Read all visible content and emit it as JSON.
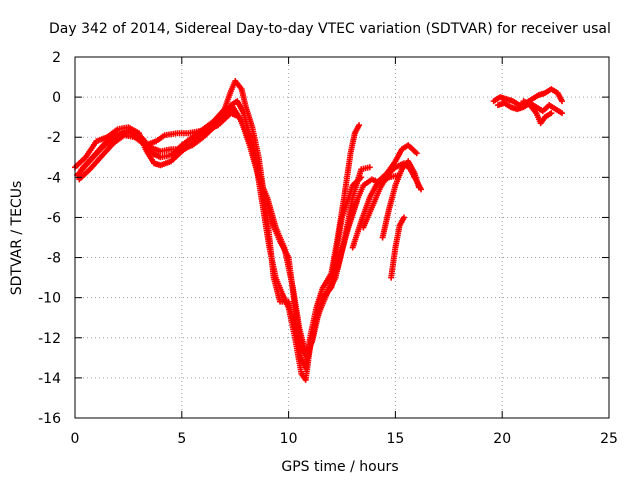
{
  "chart_data": {
    "type": "scatter",
    "title": "Day 342 of 2014, Sidereal Day-to-day VTEC variation (SDTVAR) for receiver usal",
    "xlabel": "GPS time / hours",
    "ylabel": "SDTVAR / TECUs",
    "xlim": [
      0,
      25
    ],
    "ylim": [
      -16,
      2
    ],
    "xticks": [
      0,
      5,
      10,
      15,
      20,
      25
    ],
    "yticks": [
      2,
      0,
      -2,
      -4,
      -6,
      -8,
      -10,
      -12,
      -14,
      -16
    ],
    "grid": true,
    "marker": "+",
    "series": [
      {
        "name": "SDTVAR",
        "color": "#ff0000",
        "traces": [
          [
            [
              0.0,
              -3.5
            ],
            [
              0.5,
              -3.0
            ],
            [
              1.0,
              -2.2
            ],
            [
              1.5,
              -2.0
            ],
            [
              2.0,
              -1.6
            ],
            [
              2.5,
              -1.5
            ],
            [
              3.0,
              -1.8
            ],
            [
              3.3,
              -2.6
            ],
            [
              3.7,
              -3.3
            ],
            [
              4.0,
              -3.4
            ],
            [
              4.5,
              -3.2
            ],
            [
              5.0,
              -2.7
            ],
            [
              5.5,
              -2.3
            ],
            [
              6.0,
              -1.8
            ],
            [
              6.5,
              -1.2
            ],
            [
              7.0,
              -0.6
            ],
            [
              7.3,
              0.3
            ],
            [
              7.5,
              0.8
            ],
            [
              7.8,
              0.4
            ],
            [
              8.0,
              -0.5
            ],
            [
              8.3,
              -1.5
            ],
            [
              8.6,
              -3.0
            ],
            [
              9.0,
              -6.0
            ],
            [
              9.3,
              -9.0
            ],
            [
              9.6,
              -10.2
            ],
            [
              10.0,
              -10.2
            ],
            [
              10.3,
              -11.5
            ],
            [
              10.6,
              -13.0
            ],
            [
              10.8,
              -13.5
            ],
            [
              11.0,
              -12.0
            ],
            [
              11.3,
              -10.5
            ],
            [
              11.6,
              -9.5
            ],
            [
              12.0,
              -8.8
            ],
            [
              12.3,
              -7.0
            ],
            [
              12.6,
              -5.0
            ],
            [
              12.9,
              -2.8
            ],
            [
              13.1,
              -1.8
            ],
            [
              13.3,
              -1.4
            ]
          ],
          [
            [
              0.1,
              -3.9
            ],
            [
              0.6,
              -3.3
            ],
            [
              1.2,
              -2.6
            ],
            [
              1.7,
              -2.1
            ],
            [
              2.2,
              -1.8
            ],
            [
              2.7,
              -1.7
            ],
            [
              3.2,
              -2.1
            ],
            [
              3.6,
              -2.8
            ],
            [
              4.0,
              -3.0
            ],
            [
              4.5,
              -2.9
            ],
            [
              5.0,
              -2.4
            ],
            [
              5.5,
              -2.0
            ],
            [
              6.0,
              -1.6
            ],
            [
              6.5,
              -1.2
            ],
            [
              7.0,
              -0.9
            ],
            [
              7.3,
              -0.4
            ],
            [
              7.6,
              -0.2
            ],
            [
              7.9,
              -0.8
            ],
            [
              8.2,
              -2.0
            ],
            [
              8.5,
              -3.5
            ],
            [
              8.8,
              -5.5
            ],
            [
              9.1,
              -7.5
            ],
            [
              9.4,
              -9.0
            ],
            [
              9.7,
              -9.8
            ],
            [
              10.0,
              -10.5
            ],
            [
              10.3,
              -12.0
            ],
            [
              10.6,
              -13.8
            ],
            [
              10.8,
              -14.1
            ],
            [
              11.0,
              -12.5
            ],
            [
              11.3,
              -11.0
            ],
            [
              11.6,
              -10.0
            ],
            [
              12.0,
              -9.5
            ],
            [
              12.4,
              -8.0
            ],
            [
              12.8,
              -6.5
            ],
            [
              13.2,
              -5.2
            ]
          ],
          [
            [
              0.2,
              -4.1
            ],
            [
              0.7,
              -3.6
            ],
            [
              1.2,
              -3.0
            ],
            [
              1.8,
              -2.3
            ],
            [
              2.3,
              -1.9
            ],
            [
              2.8,
              -2.0
            ],
            [
              3.3,
              -2.4
            ],
            [
              3.8,
              -2.2
            ],
            [
              4.2,
              -1.9
            ],
            [
              4.8,
              -1.8
            ],
            [
              5.3,
              -1.8
            ],
            [
              5.8,
              -1.7
            ],
            [
              6.3,
              -1.6
            ],
            [
              6.7,
              -1.4
            ],
            [
              7.0,
              -1.1
            ],
            [
              7.3,
              -0.8
            ],
            [
              7.7,
              -1.0
            ],
            [
              8.0,
              -1.8
            ],
            [
              8.4,
              -3.0
            ],
            [
              8.8,
              -4.5
            ],
            [
              9.2,
              -6.2
            ],
            [
              9.6,
              -7.2
            ],
            [
              10.0,
              -8.0
            ],
            [
              10.3,
              -10.5
            ],
            [
              10.6,
              -12.5
            ],
            [
              10.9,
              -13.0
            ],
            [
              11.2,
              -11.5
            ],
            [
              11.6,
              -10.2
            ],
            [
              12.0,
              -9.2
            ],
            [
              12.5,
              -6.0
            ],
            [
              13.0,
              -4.4
            ],
            [
              13.4,
              -4.0
            ]
          ],
          [
            [
              0.3,
              -3.6
            ],
            [
              0.9,
              -2.9
            ],
            [
              1.4,
              -2.3
            ],
            [
              2.0,
              -1.9
            ],
            [
              2.5,
              -1.7
            ],
            [
              3.0,
              -1.9
            ],
            [
              3.5,
              -2.5
            ],
            [
              4.0,
              -2.7
            ],
            [
              4.5,
              -2.6
            ],
            [
              5.0,
              -2.6
            ],
            [
              5.5,
              -2.4
            ],
            [
              6.0,
              -2.0
            ],
            [
              6.5,
              -1.5
            ],
            [
              7.0,
              -1.0
            ],
            [
              7.4,
              -0.5
            ],
            [
              7.8,
              -1.2
            ],
            [
              8.2,
              -2.5
            ],
            [
              8.6,
              -4.0
            ],
            [
              9.0,
              -5.0
            ],
            [
              9.4,
              -6.5
            ],
            [
              9.8,
              -7.5
            ],
            [
              10.2,
              -9.5
            ],
            [
              10.5,
              -11.5
            ],
            [
              10.8,
              -12.8
            ],
            [
              11.1,
              -12.2
            ],
            [
              11.4,
              -10.8
            ],
            [
              11.8,
              -9.8
            ],
            [
              12.2,
              -9.0
            ],
            [
              12.6,
              -7.2
            ],
            [
              13.0,
              -5.0
            ],
            [
              13.4,
              -3.6
            ],
            [
              13.8,
              -3.5
            ]
          ],
          [
            [
              13.0,
              -7.5
            ],
            [
              13.4,
              -6.2
            ],
            [
              13.8,
              -5.0
            ],
            [
              14.2,
              -4.2
            ],
            [
              14.6,
              -3.8
            ],
            [
              15.0,
              -3.2
            ],
            [
              15.3,
              -2.6
            ],
            [
              15.6,
              -2.4
            ],
            [
              16.0,
              -2.8
            ]
          ],
          [
            [
              13.5,
              -6.5
            ],
            [
              13.9,
              -5.5
            ],
            [
              14.3,
              -4.5
            ],
            [
              14.7,
              -3.8
            ],
            [
              15.0,
              -3.5
            ],
            [
              15.4,
              -3.3
            ],
            [
              15.7,
              -3.6
            ],
            [
              16.0,
              -4.2
            ],
            [
              16.2,
              -4.6
            ]
          ],
          [
            [
              12.3,
              -8.5
            ],
            [
              12.7,
              -6.8
            ],
            [
              13.1,
              -5.4
            ],
            [
              13.5,
              -4.4
            ],
            [
              13.9,
              -4.1
            ],
            [
              14.3,
              -4.3
            ],
            [
              14.7,
              -4.0
            ],
            [
              15.1,
              -3.9
            ]
          ],
          [
            [
              14.4,
              -7.0
            ],
            [
              14.7,
              -5.6
            ],
            [
              15.0,
              -4.4
            ],
            [
              15.3,
              -3.6
            ],
            [
              15.6,
              -3.2
            ],
            [
              15.9,
              -3.8
            ],
            [
              16.1,
              -4.5
            ]
          ],
          [
            [
              14.8,
              -9.0
            ],
            [
              15.0,
              -7.5
            ],
            [
              15.2,
              -6.4
            ],
            [
              15.4,
              -6.0
            ]
          ],
          [
            [
              19.6,
              -0.2
            ],
            [
              19.9,
              0.0
            ],
            [
              20.2,
              -0.1
            ],
            [
              20.5,
              -0.2
            ],
            [
              20.8,
              -0.4
            ],
            [
              21.1,
              -0.3
            ],
            [
              21.4,
              -0.1
            ],
            [
              21.7,
              0.1
            ],
            [
              22.0,
              0.2
            ],
            [
              22.3,
              0.4
            ],
            [
              22.6,
              0.2
            ],
            [
              22.8,
              -0.2
            ]
          ],
          [
            [
              19.8,
              -0.4
            ],
            [
              20.1,
              -0.3
            ],
            [
              20.4,
              -0.5
            ],
            [
              20.7,
              -0.6
            ],
            [
              21.0,
              -0.5
            ],
            [
              21.3,
              -0.3
            ],
            [
              21.6,
              -0.5
            ],
            [
              21.9,
              -0.7
            ],
            [
              22.2,
              -0.4
            ],
            [
              22.5,
              -0.6
            ],
            [
              22.8,
              -0.8
            ]
          ],
          [
            [
              21.0,
              -0.2
            ],
            [
              21.3,
              -0.4
            ],
            [
              21.6,
              -0.8
            ],
            [
              21.8,
              -1.3
            ],
            [
              22.0,
              -1.0
            ],
            [
              22.3,
              -0.8
            ]
          ]
        ]
      }
    ]
  }
}
